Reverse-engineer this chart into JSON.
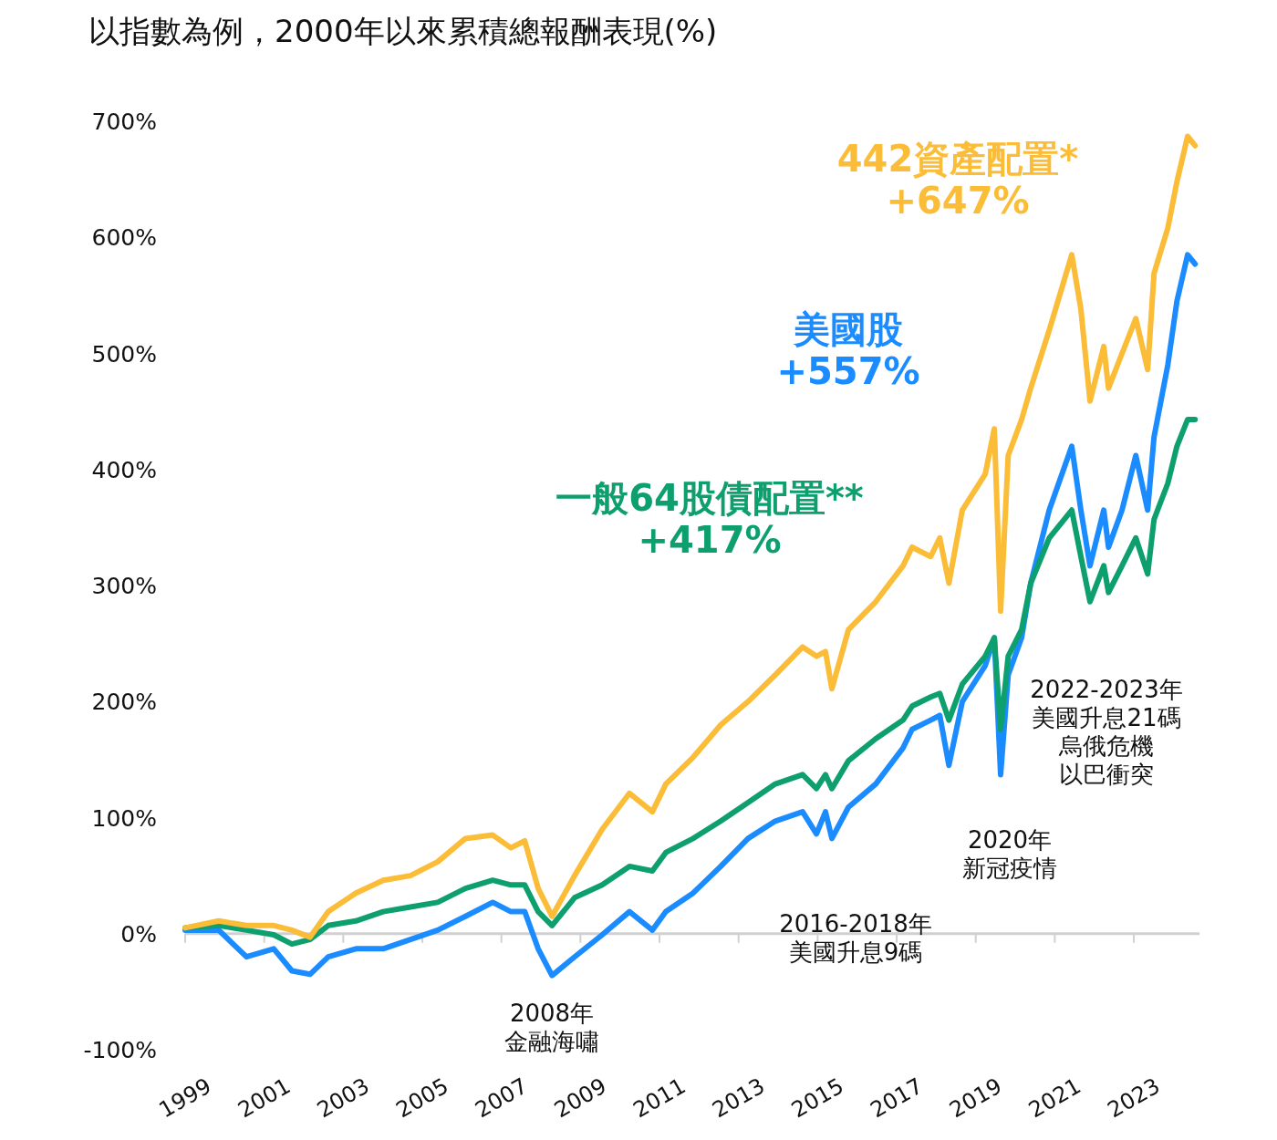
{
  "chart_data": {
    "type": "line",
    "title": "以指數為例，2000年以來累積總報酬表現(%)",
    "x": [
      1999.0,
      1999.85,
      2000.55,
      2001.24,
      2001.7,
      2002.16,
      2002.62,
      2003.32,
      2004.01,
      2004.7,
      2005.39,
      2006.09,
      2006.78,
      2007.24,
      2007.59,
      2007.93,
      2008.28,
      2008.85,
      2009.55,
      2010.24,
      2010.82,
      2011.16,
      2011.85,
      2012.55,
      2013.24,
      2013.93,
      2014.62,
      2014.97,
      2015.2,
      2015.36,
      2015.78,
      2016.47,
      2017.16,
      2017.39,
      2017.86,
      2018.09,
      2018.32,
      2018.66,
      2019.24,
      2019.47,
      2019.63,
      2019.82,
      2020.16,
      2020.39,
      2020.86,
      2021.43,
      2021.66,
      2021.89,
      2022.24,
      2022.36,
      2022.7,
      2023.05,
      2023.35,
      2023.51,
      2023.86,
      2024.09,
      2024.36,
      2024.55
    ],
    "series": [
      {
        "name": "442資產配置*",
        "color": "#fbbc38",
        "values": [
          5,
          11,
          7,
          7,
          3,
          -3,
          19,
          35,
          46,
          50,
          62,
          82,
          85,
          74,
          80,
          39,
          15,
          50,
          90,
          121,
          105,
          129,
          152,
          180,
          200,
          223,
          247,
          239,
          243,
          211,
          262,
          286,
          317,
          333,
          325,
          341,
          302,
          365,
          396,
          435,
          278,
          412,
          443,
          470,
          520,
          585,
          538,
          459,
          506,
          470,
          500,
          530,
          486,
          569,
          608,
          648,
          687,
          679
        ]
      },
      {
        "name": "美國股",
        "color": "#1a8cff",
        "values": [
          3,
          3,
          -20,
          -13,
          -32,
          -35,
          -20,
          -13,
          -13,
          -5,
          3,
          15,
          27,
          19,
          19,
          -13,
          -36,
          -20,
          -1,
          19,
          3,
          19,
          35,
          58,
          82,
          97,
          105,
          86,
          105,
          82,
          109,
          129,
          160,
          176,
          184,
          188,
          145,
          200,
          231,
          255,
          137,
          223,
          255,
          302,
          365,
          420,
          365,
          317,
          365,
          333,
          365,
          412,
          365,
          428,
          490,
          545,
          585,
          577
        ]
      },
      {
        "name": "一般64股債配置**",
        "color": "#0e9f6e",
        "values": [
          5,
          7,
          3,
          -1,
          -9,
          -5,
          7,
          11,
          19,
          23,
          27,
          39,
          46,
          42,
          42,
          19,
          7,
          31,
          42,
          58,
          54,
          70,
          82,
          97,
          113,
          129,
          137,
          125,
          137,
          125,
          149,
          168,
          184,
          196,
          204,
          207,
          184,
          215,
          239,
          255,
          176,
          239,
          262,
          302,
          341,
          365,
          325,
          286,
          317,
          294,
          317,
          341,
          310,
          357,
          388,
          420,
          443,
          443
        ]
      }
    ],
    "annotations": [
      "+647%",
      "+557%",
      "+417%",
      "2008年",
      "金融海嘯",
      "2016-2018年",
      "美國升息9碼",
      "2020年",
      "新冠疫情",
      "2022-2023年",
      "美國升息21碼",
      "烏俄危機",
      "以巴衝突"
    ],
    "ref_lines": [
      {
        "axis": "y",
        "value": 0,
        "color": "#d0d0d0"
      }
    ],
    "xlim": [
      1999,
      2024.66
    ],
    "xticks": [
      1999,
      2001,
      2003,
      2005,
      2007,
      2009,
      2011,
      2013,
      2015,
      2017,
      2019,
      2021,
      2023
    ],
    "ylim": [
      -100,
      700
    ],
    "yticks": [
      {
        "value": -100,
        "label": "-100%"
      },
      {
        "value": 0,
        "label": "0%"
      },
      {
        "value": 100,
        "label": "100%"
      },
      {
        "value": 200,
        "label": "200%"
      },
      {
        "value": 300,
        "label": "300%"
      },
      {
        "value": 400,
        "label": "400%"
      },
      {
        "value": 500,
        "label": "500%"
      },
      {
        "value": 600,
        "label": "600%"
      },
      {
        "value": 700,
        "label": "700%"
      }
    ],
    "legend": false,
    "grid": false
  }
}
